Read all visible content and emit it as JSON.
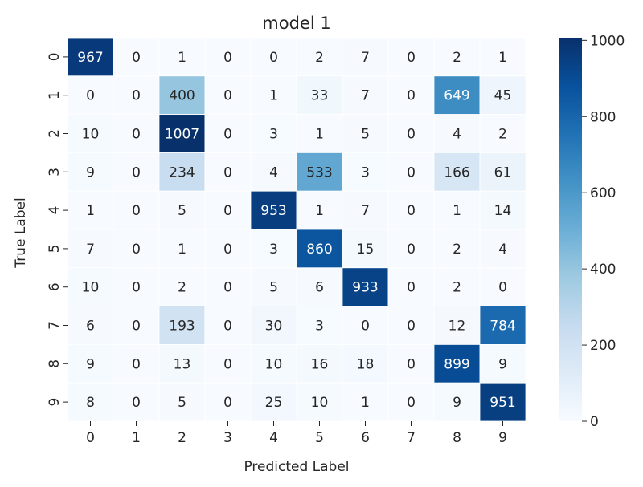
{
  "chart_data": {
    "type": "heatmap",
    "title": "model 1",
    "xlabel": "Predicted Label",
    "ylabel": "True Label",
    "x_categories": [
      "0",
      "1",
      "2",
      "3",
      "4",
      "5",
      "6",
      "7",
      "8",
      "9"
    ],
    "y_categories": [
      "0",
      "1",
      "2",
      "3",
      "4",
      "5",
      "6",
      "7",
      "8",
      "9"
    ],
    "values": [
      [
        967,
        0,
        1,
        0,
        0,
        2,
        7,
        0,
        2,
        1
      ],
      [
        0,
        0,
        400,
        0,
        1,
        33,
        7,
        0,
        649,
        45
      ],
      [
        10,
        0,
        1007,
        0,
        3,
        1,
        5,
        0,
        4,
        2
      ],
      [
        9,
        0,
        234,
        0,
        4,
        533,
        3,
        0,
        166,
        61
      ],
      [
        1,
        0,
        5,
        0,
        953,
        1,
        7,
        0,
        1,
        14
      ],
      [
        7,
        0,
        1,
        0,
        3,
        860,
        15,
        0,
        2,
        4
      ],
      [
        10,
        0,
        2,
        0,
        5,
        6,
        933,
        0,
        2,
        0
      ],
      [
        6,
        0,
        193,
        0,
        30,
        3,
        0,
        0,
        12,
        784
      ],
      [
        9,
        0,
        13,
        0,
        10,
        16,
        18,
        0,
        899,
        9
      ],
      [
        8,
        0,
        5,
        0,
        25,
        10,
        1,
        0,
        9,
        951
      ]
    ],
    "colormap": "Blues",
    "color_range": [
      0,
      1007
    ],
    "colorbar_ticks": [
      0,
      200,
      400,
      600,
      800,
      1000
    ],
    "colors": {
      "low": "#f7fbff",
      "high": "#08306b"
    }
  }
}
